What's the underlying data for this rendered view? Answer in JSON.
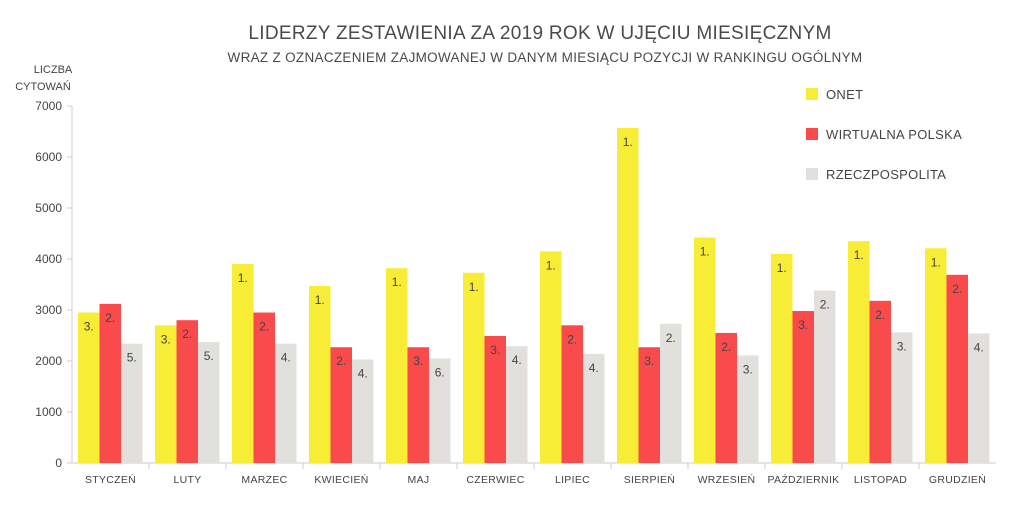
{
  "chart_data": {
    "type": "bar",
    "title": "LIDERZY ZESTAWIENIA ZA 2019 ROK W  UJĘCIU MIESIĘCZNYM",
    "subtitle": "WRAZ Z OZNACZENIEM ZAJMOWANEJ W DANYM MIESIĄCU POZYCJI W RANKINGU OGÓLNYM",
    "ylabel_lines": [
      "LICZBA",
      "CYTOWAŃ"
    ],
    "xlabel": "",
    "ylim": [
      0,
      7000
    ],
    "yticks": [
      0,
      1000,
      2000,
      3000,
      4000,
      5000,
      6000,
      7000
    ],
    "grid": false,
    "legend_position": "top-right",
    "categories": [
      "STYCZEŃ",
      "LUTY",
      "MARZEC",
      "KWIECIEŃ",
      "MAJ",
      "CZERWIEC",
      "LIPIEC",
      "SIERPIEŃ",
      "WRZESIEŃ",
      "PAŹDZIERNIK",
      "LISTOPAD",
      "GRUDZIEŃ"
    ],
    "series": [
      {
        "name": "ONET",
        "color": "#f7ec36",
        "values": [
          2950,
          2700,
          3900,
          3470,
          3820,
          3730,
          4150,
          6570,
          4420,
          4100,
          4350,
          4210
        ],
        "labels": [
          "3.",
          "3.",
          "1.",
          "1.",
          "1.",
          "1.",
          "1.",
          "1.",
          "1.",
          "1.",
          "1.",
          "1."
        ]
      },
      {
        "name": "WIRTUALNA POLSKA",
        "color": "#f94b4c",
        "values": [
          3120,
          2800,
          2950,
          2270,
          2270,
          2490,
          2700,
          2270,
          2550,
          2980,
          3180,
          3690
        ],
        "labels": [
          "2.",
          "2.",
          "2.",
          "2.",
          "3.",
          "3.",
          "2.",
          "3.",
          "2.",
          "3.",
          "2.",
          "2."
        ]
      },
      {
        "name": "RZECZPOSPOLITA",
        "color": "#e2e0dd",
        "values": [
          2340,
          2370,
          2340,
          2030,
          2050,
          2290,
          2140,
          2730,
          2110,
          3380,
          2560,
          2540
        ],
        "labels": [
          "5.",
          "5.",
          "4.",
          "4.",
          "6.",
          "4.",
          "4.",
          "2.",
          "3.",
          "2.",
          "3.",
          "4."
        ]
      }
    ]
  }
}
